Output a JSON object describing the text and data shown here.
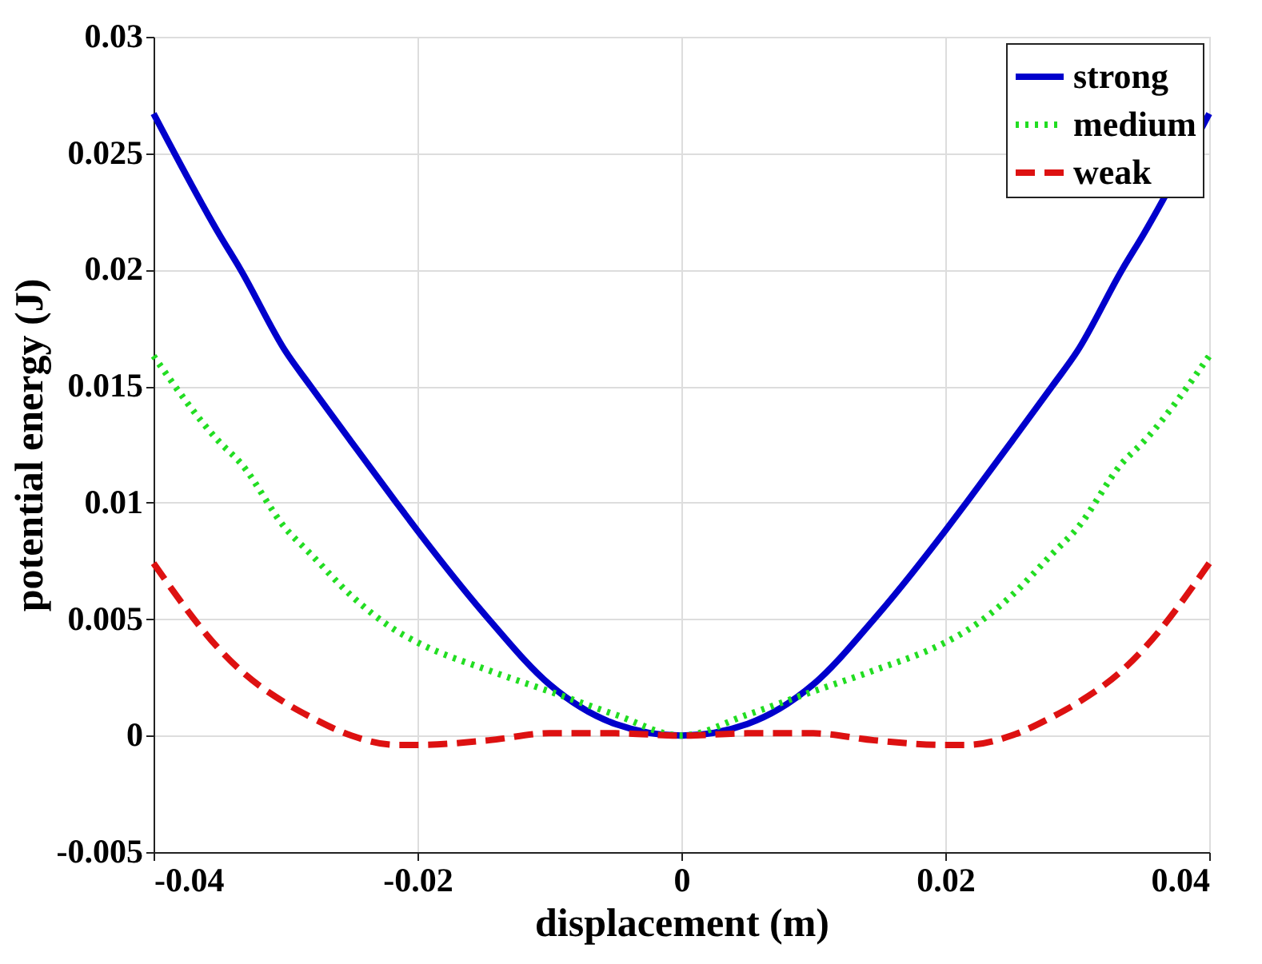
{
  "chart_data": {
    "type": "line",
    "xlabel": "displacement (m)",
    "ylabel": "potential energy (J)",
    "x": [
      -0.04,
      -0.035,
      -0.0334,
      -0.03,
      -0.0281,
      -0.025,
      -0.0216,
      -0.02,
      -0.0146,
      -0.01,
      -0.005,
      0,
      0.005,
      0.01,
      0.0146,
      0.02,
      0.0216,
      0.025,
      0.0281,
      0.03,
      0.0334,
      0.035,
      0.04
    ],
    "series": [
      {
        "name": "strong",
        "color": "#0000cc",
        "line_style": "solid",
        "values": [
          0.0267,
          0.0215,
          0.02,
          0.0165,
          0.015,
          0.0126,
          0.01,
          0.0088,
          0.005,
          0.0022,
          0.0005,
          0,
          0.0005,
          0.0022,
          0.005,
          0.0088,
          0.01,
          0.0126,
          0.015,
          0.0165,
          0.02,
          0.0215,
          0.0267
        ]
      },
      {
        "name": "medium",
        "color": "#22dd22",
        "line_style": "dotted",
        "values": [
          0.0163,
          0.0126,
          0.0117,
          0.0089,
          0.0078,
          0.006,
          0.0045,
          0.004,
          0.0028,
          0.0019,
          0.0009,
          0,
          0.0009,
          0.0019,
          0.0028,
          0.004,
          0.0045,
          0.006,
          0.0078,
          0.0089,
          0.0117,
          0.0126,
          0.0163
        ]
      },
      {
        "name": "weak",
        "color": "#dd1111",
        "line_style": "dashed",
        "values": [
          0.0074,
          0.0037,
          0.0028,
          0.0014,
          0.0008,
          0.0,
          -0.0004,
          -0.0004,
          -0.0002,
          0.0001,
          0.0001,
          0,
          0.0001,
          0.0001,
          -0.0002,
          -0.0004,
          -0.0004,
          0.0,
          0.0008,
          0.0014,
          0.0028,
          0.0037,
          0.0074
        ]
      }
    ],
    "xlim": [
      -0.04,
      0.04
    ],
    "xticks": [
      -0.04,
      -0.02,
      0,
      0.02,
      0.04
    ],
    "ylim": [
      -0.005,
      0.03
    ],
    "yticks": [
      -0.005,
      0,
      0.005,
      0.01,
      0.015,
      0.02,
      0.025,
      0.03
    ],
    "grid": true,
    "legend": "top right",
    "marker": "none"
  }
}
